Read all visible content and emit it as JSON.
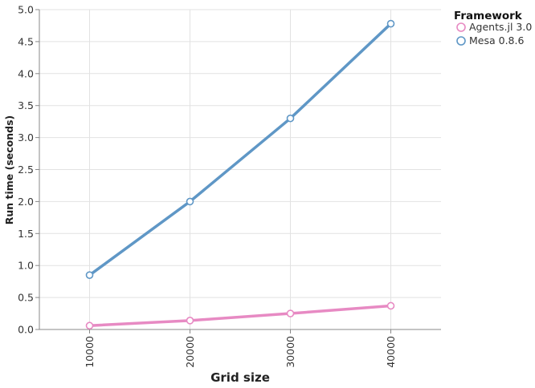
{
  "chart_data": {
    "type": "line",
    "title": "",
    "xlabel": "Grid size",
    "ylabel": "Run time (seconds)",
    "x": [
      10000,
      20000,
      30000,
      40000
    ],
    "x_tick_labels": [
      "10000",
      "20000",
      "30000",
      "40000"
    ],
    "ylim": [
      0,
      5
    ],
    "y_ticks": [
      0,
      0.5,
      1,
      1.5,
      2,
      2.5,
      3,
      3.5,
      4,
      4.5,
      5
    ],
    "y_tick_labels": [
      "0.0",
      "0.5",
      "1.0",
      "1.5",
      "2.0",
      "2.5",
      "3.0",
      "3.5",
      "4.0",
      "4.5",
      "5.0"
    ],
    "grid": true,
    "legend": {
      "title": "Framework",
      "placement": "top-right"
    },
    "series": [
      {
        "name": "Agents.jl 3.0",
        "color": "#e78ac3",
        "values": [
          0.06,
          0.14,
          0.25,
          0.37
        ]
      },
      {
        "name": "Mesa 0.8.6",
        "color": "#5f97c6",
        "values": [
          0.85,
          2.0,
          3.3,
          4.78
        ]
      }
    ]
  }
}
